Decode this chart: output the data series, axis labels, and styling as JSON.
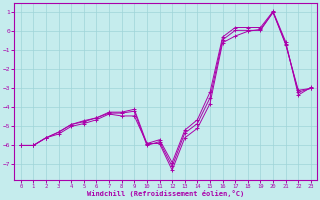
{
  "xlabel": "Windchill (Refroidissement éolien,°C)",
  "bg_color": "#c5eced",
  "grid_color": "#9fd4d8",
  "line_color": "#aa00aa",
  "xlim": [
    -0.5,
    23.5
  ],
  "ylim": [
    -7.8,
    1.5
  ],
  "xticks": [
    0,
    1,
    2,
    3,
    4,
    5,
    6,
    7,
    8,
    9,
    10,
    11,
    12,
    13,
    14,
    15,
    16,
    17,
    18,
    19,
    20,
    21,
    22,
    23
  ],
  "yticks": [
    1,
    0,
    -1,
    -2,
    -3,
    -4,
    -5,
    -6,
    -7
  ],
  "line1_x": [
    0,
    1,
    2,
    3,
    4,
    5,
    6,
    7,
    8,
    9,
    10,
    11,
    12,
    13,
    14,
    15,
    16,
    17,
    18,
    19,
    20,
    21,
    22,
    23
  ],
  "line1_y": [
    -6.0,
    -6.0,
    -5.6,
    -5.4,
    -5.0,
    -4.85,
    -4.65,
    -4.35,
    -4.45,
    -4.45,
    -5.9,
    -5.9,
    -7.3,
    -5.6,
    -5.1,
    -3.8,
    -0.6,
    -0.25,
    0.0,
    0.1,
    1.0,
    -0.7,
    -3.1,
    -3.0
  ],
  "line2_x": [
    0,
    1,
    2,
    3,
    4,
    5,
    6,
    7,
    8,
    9,
    10,
    11,
    12,
    13,
    14,
    15,
    16,
    17,
    18,
    19,
    20,
    21,
    22,
    23
  ],
  "line2_y": [
    -6.0,
    -6.0,
    -5.6,
    -5.3,
    -4.9,
    -4.75,
    -4.55,
    -4.3,
    -4.3,
    -4.2,
    -6.0,
    -5.8,
    -7.1,
    -5.35,
    -4.85,
    -3.5,
    -0.45,
    0.05,
    0.05,
    0.05,
    1.0,
    -0.65,
    -3.2,
    -3.0
  ],
  "line3_x": [
    0,
    1,
    2,
    3,
    4,
    5,
    6,
    7,
    8,
    9,
    10,
    11,
    12,
    13,
    14,
    15,
    16,
    17,
    18,
    19,
    20,
    21,
    22,
    23
  ],
  "line3_y": [
    -6.0,
    -6.0,
    -5.6,
    -5.3,
    -4.9,
    -4.7,
    -4.55,
    -4.25,
    -4.25,
    -4.1,
    -5.9,
    -5.7,
    -6.9,
    -5.2,
    -4.65,
    -3.2,
    -0.3,
    0.2,
    0.2,
    0.2,
    1.05,
    -0.55,
    -3.35,
    -2.95
  ]
}
